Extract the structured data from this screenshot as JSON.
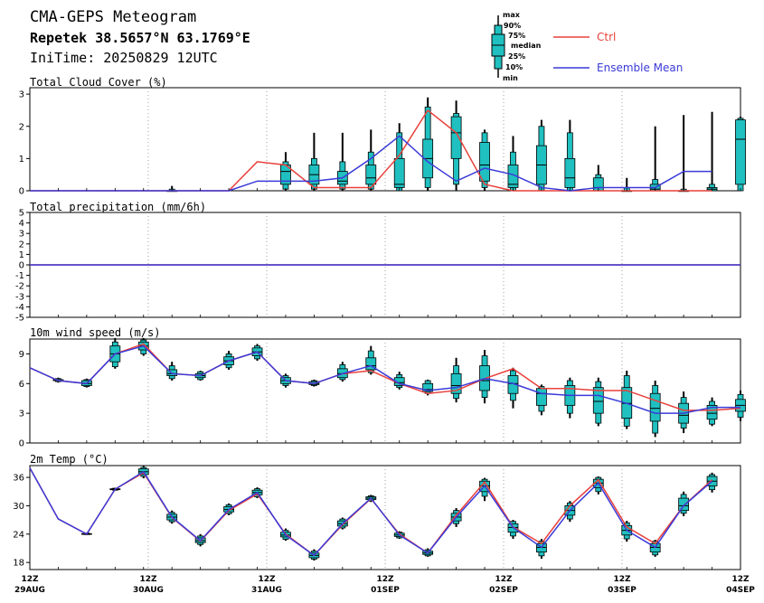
{
  "header": {
    "title": "CMA-GEPS Meteogram",
    "location": "Repetek 38.5657°N 63.1769°E",
    "init_time": "IniTime: 20250829 12UTC"
  },
  "legend": {
    "box_labels": [
      "max",
      "90%",
      "75%",
      "median",
      "25%",
      "10%",
      "min"
    ],
    "ctrl_label": "Ctrl",
    "mean_label": "Ensemble Mean",
    "ctrl_color": "#e8413c",
    "mean_color": "#3a3ad8",
    "box_color": "#20c0c0"
  },
  "x_axis": {
    "hour_label": "12Z",
    "dates": [
      "29AUG",
      "30AUG",
      "31AUG",
      "01SEP",
      "02SEP",
      "03SEP",
      "04SEP"
    ]
  },
  "chart_data": [
    {
      "type": "box",
      "title": "Total Cloud Cover (%)",
      "ylim": [
        0,
        3.2
      ],
      "yticks": [
        0,
        1,
        2,
        3
      ],
      "steps": 25,
      "ctrl": [
        0,
        0,
        0,
        0,
        0,
        0,
        0,
        0,
        0.9,
        0.8,
        0.1,
        0.1,
        0.1,
        1.1,
        2.5,
        1.8,
        0.2,
        0,
        0,
        0,
        0,
        0,
        0,
        0,
        0
      ],
      "mean": [
        0,
        0,
        0,
        0,
        0,
        0,
        0,
        0,
        0.3,
        0.3,
        0.3,
        0.4,
        1.0,
        1.7,
        0.9,
        0.3,
        0.7,
        0.5,
        0.1,
        0,
        0.1,
        0.1,
        0.1,
        0.6,
        0.6
      ],
      "boxes": [
        {
          "i": 5,
          "min": 0,
          "p10": 0,
          "p25": 0,
          "med": 0,
          "p75": 0,
          "p90": 0.05,
          "max": 0.15
        },
        {
          "i": 9,
          "min": 0,
          "p10": 0.05,
          "p25": 0.2,
          "med": 0.6,
          "p75": 0.8,
          "p90": 0.9,
          "max": 1.2
        },
        {
          "i": 10,
          "min": 0,
          "p10": 0.05,
          "p25": 0.2,
          "med": 0.5,
          "p75": 0.8,
          "p90": 1.0,
          "max": 1.8
        },
        {
          "i": 11,
          "min": 0,
          "p10": 0.05,
          "p25": 0.2,
          "med": 0.3,
          "p75": 0.6,
          "p90": 0.9,
          "max": 1.8
        },
        {
          "i": 12,
          "min": 0,
          "p10": 0.05,
          "p25": 0.2,
          "med": 0.4,
          "p75": 0.8,
          "p90": 1.2,
          "max": 1.9
        },
        {
          "i": 13,
          "min": 0,
          "p10": 0,
          "p25": 0.1,
          "med": 0.2,
          "p75": 1.0,
          "p90": 1.8,
          "max": 2.1
        },
        {
          "i": 14,
          "min": 0,
          "p10": 0.1,
          "p25": 0.4,
          "med": 1.0,
          "p75": 1.6,
          "p90": 2.6,
          "max": 2.9
        },
        {
          "i": 15,
          "min": 0,
          "p10": 0.2,
          "p25": 1.0,
          "med": 1.8,
          "p75": 2.3,
          "p90": 2.4,
          "max": 2.8
        },
        {
          "i": 16,
          "min": 0,
          "p10": 0.1,
          "p25": 0.3,
          "med": 0.8,
          "p75": 1.5,
          "p90": 1.8,
          "max": 1.9
        },
        {
          "i": 17,
          "min": 0,
          "p10": 0,
          "p25": 0.1,
          "med": 0.2,
          "p75": 0.8,
          "p90": 1.2,
          "max": 1.7
        },
        {
          "i": 18,
          "min": 0,
          "p10": 0,
          "p25": 0.2,
          "med": 0.8,
          "p75": 1.4,
          "p90": 2.0,
          "max": 2.2
        },
        {
          "i": 19,
          "min": 0,
          "p10": 0,
          "p25": 0.1,
          "med": 0.4,
          "p75": 1.0,
          "p90": 1.8,
          "max": 2.2
        },
        {
          "i": 20,
          "min": 0,
          "p10": 0,
          "p25": 0,
          "med": 0.1,
          "p75": 0.4,
          "p90": 0.5,
          "max": 0.8
        },
        {
          "i": 21,
          "min": 0,
          "p10": 0,
          "p25": 0,
          "med": 0,
          "p75": 0,
          "p90": 0.1,
          "max": 0.4
        },
        {
          "i": 22,
          "min": 0,
          "p10": 0,
          "p25": 0,
          "med": 0.05,
          "p75": 0.2,
          "p90": 0.35,
          "max": 2.0
        },
        {
          "i": 23,
          "min": 0,
          "p10": 0,
          "p25": 0,
          "med": 0,
          "p75": 0,
          "p90": 0.05,
          "max": 2.35
        },
        {
          "i": 24,
          "min": 0,
          "p10": 0,
          "p25": 0,
          "med": 0.05,
          "p75": 0.1,
          "p90": 0.2,
          "max": 2.45
        },
        {
          "i": 25,
          "min": 0,
          "p10": 0,
          "p25": 0.2,
          "med": 1.6,
          "p75": 2.2,
          "p90": 2.25,
          "max": 2.3
        }
      ]
    },
    {
      "type": "line",
      "title": "Total precipitation (mm/6h)",
      "ylim": [
        -5,
        5
      ],
      "yticks": [
        -5,
        -4,
        -3,
        -2,
        -1,
        0,
        1,
        2,
        3,
        4,
        5
      ],
      "steps": 25,
      "ctrl": [
        0,
        0,
        0,
        0,
        0,
        0,
        0,
        0,
        0,
        0,
        0,
        0,
        0,
        0,
        0,
        0,
        0,
        0,
        0,
        0,
        0,
        0,
        0,
        0,
        0,
        0
      ],
      "mean": [
        0,
        0,
        0,
        0,
        0,
        0,
        0,
        0,
        0,
        0,
        0,
        0,
        0,
        0,
        0,
        0,
        0,
        0,
        0,
        0,
        0,
        0,
        0,
        0,
        0,
        0
      ],
      "boxes": []
    },
    {
      "type": "box",
      "title": "10m wind speed (m/s)",
      "ylim": [
        0,
        10.5
      ],
      "yticks": [
        0,
        3,
        6,
        9
      ],
      "steps": 25,
      "ctrl": [
        7.6,
        6.3,
        6.0,
        9.0,
        10.0,
        7.0,
        6.8,
        8.3,
        9.2,
        6.3,
        6.0,
        7.0,
        7.3,
        6.0,
        5.0,
        5.3,
        6.5,
        7.5,
        5.5,
        5.5,
        5.3,
        5.3,
        4.3,
        3.3,
        3.3,
        3.5
      ],
      "mean": [
        7.6,
        6.3,
        6.0,
        9.0,
        9.8,
        7.0,
        6.8,
        8.3,
        9.2,
        6.3,
        6.0,
        7.0,
        7.8,
        6.0,
        5.3,
        5.6,
        6.5,
        6.0,
        5.0,
        4.8,
        4.8,
        4.0,
        3.0,
        3.0,
        3.6,
        3.6
      ],
      "boxes": [
        {
          "i": 1,
          "min": 6.1,
          "p10": 6.2,
          "p25": 6.3,
          "med": 6.3,
          "p75": 6.4,
          "p90": 6.5,
          "max": 6.6
        },
        {
          "i": 2,
          "min": 5.6,
          "p10": 5.7,
          "p25": 5.8,
          "med": 6.0,
          "p75": 6.3,
          "p90": 6.4,
          "max": 6.5
        },
        {
          "i": 3,
          "min": 7.5,
          "p10": 7.7,
          "p25": 8.2,
          "med": 9.0,
          "p75": 9.8,
          "p90": 10.2,
          "max": 10.6
        },
        {
          "i": 4,
          "min": 8.8,
          "p10": 9.0,
          "p25": 9.4,
          "med": 9.8,
          "p75": 10.2,
          "p90": 10.4,
          "max": 10.6
        },
        {
          "i": 5,
          "min": 6.3,
          "p10": 6.5,
          "p25": 6.8,
          "med": 7.0,
          "p75": 7.4,
          "p90": 7.8,
          "max": 8.2
        },
        {
          "i": 6,
          "min": 6.3,
          "p10": 6.4,
          "p25": 6.6,
          "med": 6.8,
          "p75": 7.0,
          "p90": 7.2,
          "max": 7.3
        },
        {
          "i": 7,
          "min": 7.4,
          "p10": 7.6,
          "p25": 7.9,
          "med": 8.3,
          "p75": 8.7,
          "p90": 9.0,
          "max": 9.3
        },
        {
          "i": 8,
          "min": 8.3,
          "p10": 8.5,
          "p25": 8.8,
          "med": 9.2,
          "p75": 9.6,
          "p90": 9.8,
          "max": 10.0
        },
        {
          "i": 9,
          "min": 5.6,
          "p10": 5.8,
          "p25": 6.0,
          "med": 6.3,
          "p75": 6.6,
          "p90": 6.8,
          "max": 7.0
        },
        {
          "i": 10,
          "min": 5.7,
          "p10": 5.8,
          "p25": 5.9,
          "med": 6.0,
          "p75": 6.2,
          "p90": 6.3,
          "max": 6.4
        },
        {
          "i": 11,
          "min": 6.2,
          "p10": 6.4,
          "p25": 6.6,
          "med": 7.0,
          "p75": 7.5,
          "p90": 7.9,
          "max": 8.2
        },
        {
          "i": 12,
          "min": 6.9,
          "p10": 7.1,
          "p25": 7.4,
          "med": 7.8,
          "p75": 8.6,
          "p90": 9.3,
          "max": 9.8
        },
        {
          "i": 13,
          "min": 5.4,
          "p10": 5.6,
          "p25": 5.8,
          "med": 6.1,
          "p75": 6.6,
          "p90": 6.9,
          "max": 7.2
        },
        {
          "i": 14,
          "min": 4.8,
          "p10": 5.0,
          "p25": 5.2,
          "med": 5.4,
          "p75": 6.0,
          "p90": 6.3,
          "max": 6.4
        },
        {
          "i": 15,
          "min": 4.1,
          "p10": 4.5,
          "p25": 5.0,
          "med": 5.8,
          "p75": 7.0,
          "p90": 7.8,
          "max": 8.6
        },
        {
          "i": 16,
          "min": 4.0,
          "p10": 4.6,
          "p25": 5.3,
          "med": 6.3,
          "p75": 7.8,
          "p90": 8.8,
          "max": 9.4
        },
        {
          "i": 17,
          "min": 3.5,
          "p10": 4.3,
          "p25": 5.0,
          "med": 6.0,
          "p75": 6.8,
          "p90": 7.3,
          "max": 7.6
        },
        {
          "i": 18,
          "min": 2.8,
          "p10": 3.2,
          "p25": 3.8,
          "med": 5.0,
          "p75": 5.5,
          "p90": 5.7,
          "max": 5.9
        },
        {
          "i": 19,
          "min": 2.5,
          "p10": 3.0,
          "p25": 3.8,
          "med": 4.8,
          "p75": 5.8,
          "p90": 6.3,
          "max": 6.6
        },
        {
          "i": 20,
          "min": 1.7,
          "p10": 2.0,
          "p25": 3.0,
          "med": 4.2,
          "p75": 5.6,
          "p90": 6.2,
          "max": 6.6
        },
        {
          "i": 21,
          "min": 1.4,
          "p10": 1.7,
          "p25": 2.5,
          "med": 4.0,
          "p75": 5.6,
          "p90": 6.8,
          "max": 7.3
        },
        {
          "i": 22,
          "min": 0.6,
          "p10": 1.0,
          "p25": 2.2,
          "med": 3.5,
          "p75": 5.0,
          "p90": 5.8,
          "max": 6.3
        },
        {
          "i": 23,
          "min": 1.0,
          "p10": 1.5,
          "p25": 2.0,
          "med": 2.8,
          "p75": 4.0,
          "p90": 4.6,
          "max": 5.2
        },
        {
          "i": 24,
          "min": 1.7,
          "p10": 1.9,
          "p25": 2.4,
          "med": 3.0,
          "p75": 3.8,
          "p90": 4.2,
          "max": 4.6
        },
        {
          "i": 25,
          "min": 2.2,
          "p10": 2.6,
          "p25": 3.2,
          "med": 3.8,
          "p75": 4.4,
          "p90": 4.9,
          "max": 5.3
        }
      ]
    },
    {
      "type": "box",
      "title": "2m Temp (°C)",
      "ylim": [
        16.5,
        38.5
      ],
      "yticks": [
        18,
        24,
        30,
        36
      ],
      "steps": 25,
      "ctrl": [
        38,
        27.2,
        24,
        33.5,
        37,
        27.5,
        22.5,
        29,
        32.5,
        24,
        19.5,
        26,
        31.5,
        24,
        20,
        28,
        35,
        25.5,
        22,
        30,
        35.5,
        25.5,
        22,
        30,
        35.5
      ],
      "mean": [
        38,
        27.2,
        24,
        33.5,
        37.2,
        27.6,
        22.6,
        29.2,
        32.8,
        23.8,
        19.5,
        26.2,
        31.6,
        23.8,
        20.0,
        27.6,
        34.2,
        25.4,
        21.2,
        29.0,
        34.8,
        24.8,
        21.2,
        30.0,
        35.2
      ],
      "boxes": [
        {
          "i": 2,
          "min": 23.8,
          "p10": 23.9,
          "p25": 24.0,
          "med": 24.0,
          "p75": 24.1,
          "p90": 24.2,
          "max": 24.3
        },
        {
          "i": 3,
          "min": 33.2,
          "p10": 33.3,
          "p25": 33.4,
          "med": 33.5,
          "p75": 33.6,
          "p90": 33.7,
          "max": 33.8
        },
        {
          "i": 4,
          "min": 35.8,
          "p10": 36.2,
          "p25": 36.6,
          "med": 37.2,
          "p75": 37.8,
          "p90": 38.1,
          "max": 38.4
        },
        {
          "i": 5,
          "min": 26.2,
          "p10": 26.6,
          "p25": 27.0,
          "med": 27.6,
          "p75": 28.2,
          "p90": 28.6,
          "max": 29.0
        },
        {
          "i": 6,
          "min": 21.4,
          "p10": 21.8,
          "p25": 22.2,
          "med": 22.6,
          "p75": 23.2,
          "p90": 23.6,
          "max": 24.0
        },
        {
          "i": 7,
          "min": 28.0,
          "p10": 28.3,
          "p25": 28.7,
          "med": 29.2,
          "p75": 29.8,
          "p90": 30.2,
          "max": 30.5
        },
        {
          "i": 8,
          "min": 31.6,
          "p10": 31.9,
          "p25": 32.3,
          "med": 32.8,
          "p75": 33.3,
          "p90": 33.6,
          "max": 33.9
        },
        {
          "i": 9,
          "min": 22.6,
          "p10": 22.9,
          "p25": 23.4,
          "med": 23.8,
          "p75": 24.4,
          "p90": 24.8,
          "max": 25.2
        },
        {
          "i": 10,
          "min": 18.4,
          "p10": 18.7,
          "p25": 19.0,
          "med": 19.5,
          "p75": 20.0,
          "p90": 20.4,
          "max": 20.8
        },
        {
          "i": 11,
          "min": 25.0,
          "p10": 25.3,
          "p25": 25.7,
          "med": 26.2,
          "p75": 26.8,
          "p90": 27.2,
          "max": 27.5
        },
        {
          "i": 12,
          "min": 30.8,
          "p10": 31.0,
          "p25": 31.3,
          "med": 31.6,
          "p75": 31.9,
          "p90": 32.1,
          "max": 32.3
        },
        {
          "i": 13,
          "min": 23.0,
          "p10": 23.2,
          "p25": 23.5,
          "med": 23.8,
          "p75": 24.2,
          "p90": 24.4,
          "max": 24.6
        },
        {
          "i": 14,
          "min": 19.2,
          "p10": 19.4,
          "p25": 19.7,
          "med": 20.0,
          "p75": 20.4,
          "p90": 20.7,
          "max": 21.0
        },
        {
          "i": 15,
          "min": 25.5,
          "p10": 26.2,
          "p25": 26.8,
          "med": 27.6,
          "p75": 28.4,
          "p90": 29.0,
          "max": 29.5
        },
        {
          "i": 16,
          "min": 31.0,
          "p10": 32.0,
          "p25": 33.0,
          "med": 34.2,
          "p75": 35.2,
          "p90": 35.6,
          "max": 35.9
        },
        {
          "i": 17,
          "min": 23.0,
          "p10": 23.6,
          "p25": 24.4,
          "med": 25.4,
          "p75": 26.2,
          "p90": 26.7,
          "max": 27.0
        },
        {
          "i": 18,
          "min": 18.8,
          "p10": 19.4,
          "p25": 20.2,
          "med": 21.2,
          "p75": 22.0,
          "p90": 22.5,
          "max": 23.0
        },
        {
          "i": 19,
          "min": 26.6,
          "p10": 27.2,
          "p25": 28.0,
          "med": 29.0,
          "p75": 30.0,
          "p90": 30.6,
          "max": 31.0
        },
        {
          "i": 20,
          "min": 32.4,
          "p10": 33.0,
          "p25": 33.8,
          "med": 34.8,
          "p75": 35.6,
          "p90": 36.0,
          "max": 36.2
        },
        {
          "i": 21,
          "min": 22.4,
          "p10": 23.0,
          "p25": 23.8,
          "med": 24.8,
          "p75": 25.8,
          "p90": 26.4,
          "max": 26.8
        },
        {
          "i": 22,
          "min": 19.2,
          "p10": 19.6,
          "p25": 20.2,
          "med": 21.2,
          "p75": 22.0,
          "p90": 22.5,
          "max": 22.8
        },
        {
          "i": 23,
          "min": 27.8,
          "p10": 28.4,
          "p25": 29.0,
          "med": 30.0,
          "p75": 31.6,
          "p90": 32.4,
          "max": 33.0
        },
        {
          "i": 24,
          "min": 32.8,
          "p10": 33.4,
          "p25": 34.2,
          "med": 35.2,
          "p75": 36.2,
          "p90": 36.6,
          "max": 37.0
        }
      ]
    }
  ]
}
